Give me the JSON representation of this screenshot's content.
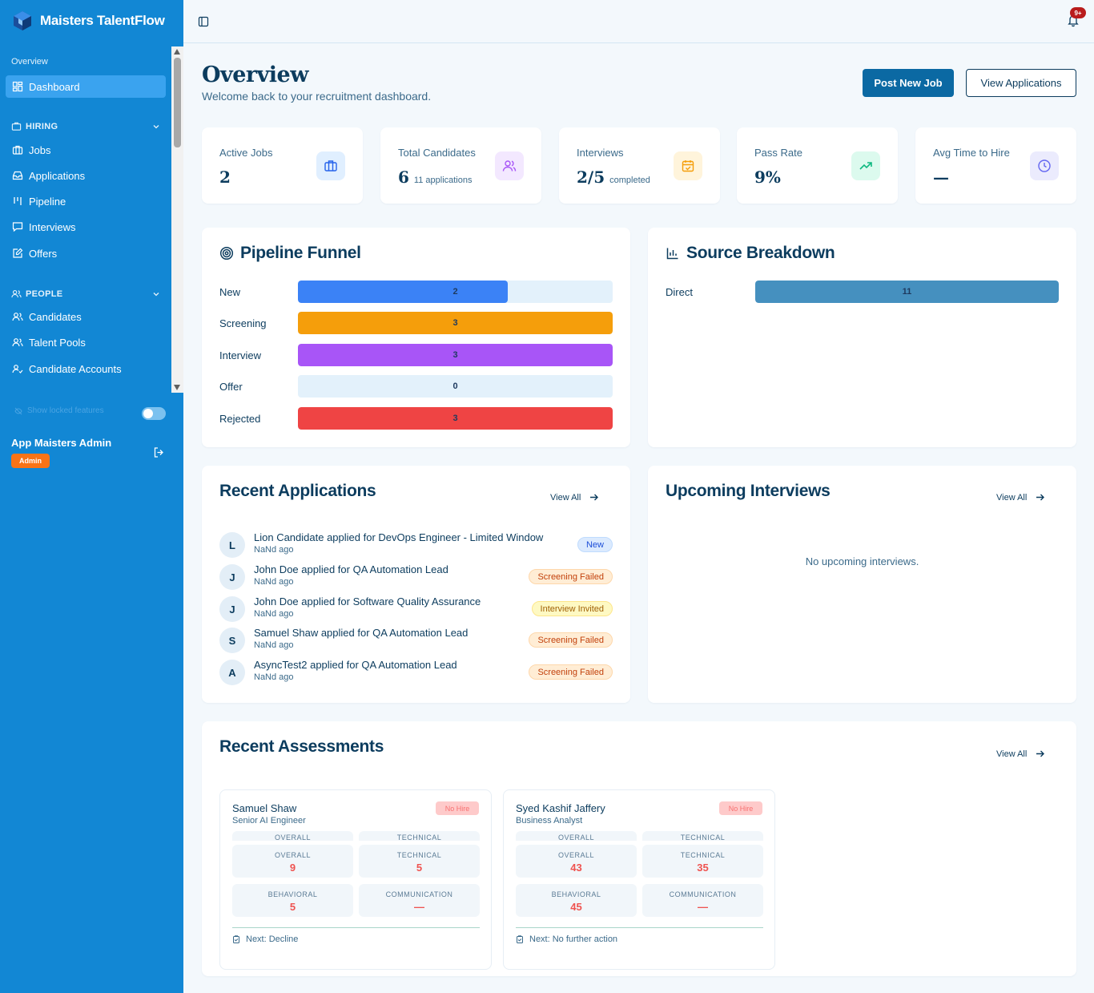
{
  "app": {
    "name": "Maisters TalentFlow",
    "notifications_badge": "9+"
  },
  "sidebar": {
    "overview_label": "Overview",
    "dashboard": "Dashboard",
    "hiring_label": "HIRING",
    "hiring_items": [
      "Jobs",
      "Applications",
      "Pipeline",
      "Interviews",
      "Offers"
    ],
    "people_label": "PEOPLE",
    "people_items": [
      "Candidates",
      "Talent Pools",
      "Candidate Accounts"
    ],
    "locked_toggle_label": "Show locked features",
    "user_name": "App Maisters Admin",
    "user_role": "Admin"
  },
  "header": {
    "title": "Overview",
    "subtitle": "Welcome back to your recruitment dashboard.",
    "post_job": "Post New Job",
    "view_applications": "View Applications"
  },
  "stats": [
    {
      "label": "Active Jobs",
      "value": "2",
      "sub": "",
      "icon": "briefcase-icon",
      "color": "#2563eb",
      "bg": "#e0efff"
    },
    {
      "label": "Total Candidates",
      "value": "6",
      "sub": "11 applications",
      "icon": "users-icon",
      "color": "#a855f7",
      "bg": "#f3e8ff"
    },
    {
      "label": "Interviews",
      "value": "2/5",
      "sub": "completed",
      "icon": "calendar-check-icon",
      "color": "#f59e0b",
      "bg": "#fff4db"
    },
    {
      "label": "Pass Rate",
      "value": "9%",
      "sub": "",
      "icon": "trending-up-icon",
      "color": "#10b981",
      "bg": "#dcfaee"
    },
    {
      "label": "Avg Time to Hire",
      "value": "—",
      "sub": "",
      "icon": "clock-icon",
      "color": "#6366f1",
      "bg": "#ebebfd"
    }
  ],
  "pipeline": {
    "title": "Pipeline Funnel",
    "max": 3,
    "stages": [
      {
        "label": "New",
        "value": 2,
        "color": "#3b82f6"
      },
      {
        "label": "Screening",
        "value": 3,
        "color": "#f59e0b"
      },
      {
        "label": "Interview",
        "value": 3,
        "color": "#a855f7"
      },
      {
        "label": "Offer",
        "value": 0,
        "color": "#e3f1fb"
      },
      {
        "label": "Rejected",
        "value": 3,
        "color": "#ef4444"
      }
    ]
  },
  "sources": {
    "title": "Source Breakdown",
    "max": 11,
    "items": [
      {
        "label": "Direct",
        "value": 11,
        "color": "#4590bf"
      }
    ]
  },
  "recent_applications": {
    "title": "Recent Applications",
    "view_all": "View All",
    "items": [
      {
        "initial": "L",
        "text": "Lion Candidate applied for DevOps Engineer - Limited Window",
        "time": "NaNd ago",
        "status": "New",
        "kind": "new"
      },
      {
        "initial": "J",
        "text": "John Doe applied for QA Automation Lead",
        "time": "NaNd ago",
        "status": "Screening Failed",
        "kind": "failed"
      },
      {
        "initial": "J",
        "text": "John Doe applied for Software Quality Assurance",
        "time": "NaNd ago",
        "status": "Interview Invited",
        "kind": "invited"
      },
      {
        "initial": "S",
        "text": "Samuel Shaw applied for QA Automation Lead",
        "time": "NaNd ago",
        "status": "Screening Failed",
        "kind": "failed"
      },
      {
        "initial": "A",
        "text": "AsyncTest2 applied for QA Automation Lead",
        "time": "NaNd ago",
        "status": "Screening Failed",
        "kind": "failed"
      }
    ]
  },
  "upcoming_interviews": {
    "title": "Upcoming Interviews",
    "view_all": "View All",
    "empty": "No upcoming interviews."
  },
  "recent_assessments": {
    "title": "Recent Assessments",
    "view_all": "View All",
    "items": [
      {
        "name": "Samuel Shaw",
        "role": "Senior AI Engineer",
        "badge": "No Hire",
        "ghost_left": "OVERALL",
        "ghost_right": "TECHNICAL",
        "metrics": [
          {
            "label": "OVERALL",
            "value": "9"
          },
          {
            "label": "TECHNICAL",
            "value": "5"
          },
          {
            "label": "BEHAVIORAL",
            "value": "5"
          },
          {
            "label": "COMMUNICATION",
            "value": "—"
          }
        ],
        "next": "Next: Decline"
      },
      {
        "name": "Syed Kashif Jaffery",
        "role": "Business Analyst",
        "badge": "No Hire",
        "ghost_left": "OVERALL",
        "ghost_right": "TECHNICAL",
        "metrics": [
          {
            "label": "OVERALL",
            "value": "43"
          },
          {
            "label": "TECHNICAL",
            "value": "35"
          },
          {
            "label": "BEHAVIORAL",
            "value": "45"
          },
          {
            "label": "COMMUNICATION",
            "value": "—"
          }
        ],
        "next": "Next: No further action"
      }
    ]
  }
}
